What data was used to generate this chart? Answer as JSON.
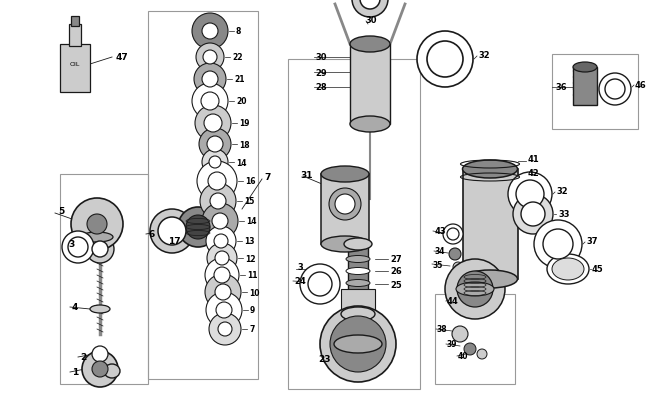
{
  "bg_color": "#ffffff",
  "lc": "#1a1a1a",
  "gray1": "#aaaaaa",
  "gray2": "#cccccc",
  "gray3": "#888888",
  "gray4": "#666666",
  "gray5": "#dddddd",
  "darkgray": "#444444"
}
